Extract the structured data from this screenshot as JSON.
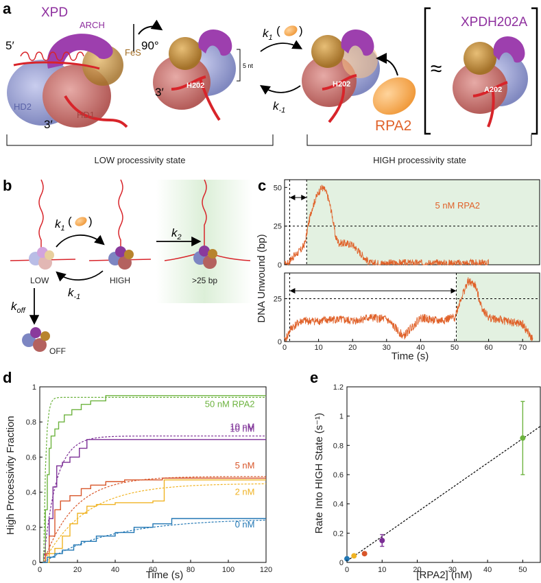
{
  "panel_a": {
    "letter": "a",
    "xpd_title": "XPD",
    "arch": "ARCH",
    "fes": "FeS",
    "hd2": "HD2",
    "hd1": "HD1",
    "five_prime": "5′",
    "three_prime": "3′",
    "three_prime_mid": "3′",
    "rotation": "90°",
    "h202_mid": "H202",
    "five_nt": "5 nt",
    "k1": "k",
    "k1_sub": "1",
    "km1": "k",
    "km1_sub": "-1",
    "h202_right": "H202",
    "rpa2": "RPA2",
    "mutant_title": "XPDH202A",
    "approx": "≈",
    "a202": "A202",
    "low_state": "LOW processivity state",
    "high_state": "HIGH processivity state"
  },
  "panel_b": {
    "letter": "b",
    "k1": "k",
    "k1_sub": "1",
    "k2": "k",
    "k2_sub": "2",
    "km1": "k",
    "km1_sub": "-1",
    "koff": "k",
    "koff_sub": "off",
    "low": "LOW",
    "high": "HIGH",
    "gt25": ">25 bp",
    "off": "OFF"
  },
  "panel_c": {
    "letter": "c",
    "ylabel": "DNA Unwound (bp)",
    "xlabel": "Time (s)",
    "trace_label": "5 nM RPA2",
    "top_yticks": [
      "0",
      "25",
      "50"
    ],
    "bottom_yticks": [
      "0",
      "25"
    ],
    "xticks": [
      "0",
      "10",
      "20",
      "30",
      "40",
      "50",
      "60",
      "70"
    ]
  },
  "panel_d": {
    "letter": "d",
    "ylabel": "High Processivity Fraction",
    "xlabel": "Time (s)",
    "xticks": [
      "0",
      "20",
      "40",
      "60",
      "80",
      "100",
      "120"
    ],
    "yticks": [
      "0",
      "0.2",
      "0.4",
      "0.6",
      "0.8",
      "1"
    ],
    "series_labels": [
      "50 nM RPA2",
      "10 nM",
      "5 nM",
      "2 nM",
      "0 nM"
    ]
  },
  "panel_e": {
    "letter": "e",
    "ylabel": "Rate Into HIGH State (s⁻¹)",
    "xlabel": "[RPA2] (nM)",
    "xticks": [
      "0",
      "10",
      "20",
      "30",
      "40",
      "50"
    ],
    "yticks": [
      "0",
      "0.2",
      "0.4",
      "0.6",
      "0.8",
      "1",
      "1.2"
    ]
  },
  "colors": {
    "red": "#d8242a",
    "orange": "#e0622a",
    "purple": "#8e2f9e",
    "blue_domain": "#8e97c9",
    "red_domain": "#c87a78",
    "gold": "#c6923c",
    "green_shade": "#e3f1e1",
    "c50": "#6db33f",
    "c10": "#7b2d95",
    "c5": "#d8562a",
    "c2": "#f0b323",
    "c0": "#2277b4"
  },
  "chart_data": [
    {
      "type": "line",
      "panel": "c-top",
      "title": "",
      "xlabel": "",
      "ylabel": "DNA Unwound (bp)",
      "xlim": [
        0,
        75
      ],
      "ylim": [
        0,
        55
      ],
      "legend": "5 nM RPA2",
      "series": [
        {
          "name": "5 nM RPA2",
          "x": [
            0,
            1,
            2,
            3,
            4,
            5,
            6,
            7,
            8,
            9,
            10,
            11,
            12,
            13,
            14,
            15,
            16,
            17,
            20,
            25,
            30,
            40,
            50,
            60
          ],
          "y": [
            0,
            1,
            4,
            6,
            8,
            10,
            14,
            26,
            36,
            42,
            47,
            50,
            48,
            42,
            32,
            18,
            14,
            14,
            13,
            1,
            1,
            1,
            1,
            1
          ]
        }
      ],
      "markers_x": [
        1.5,
        6.5
      ],
      "threshold_y": 25
    },
    {
      "type": "line",
      "panel": "c-bottom",
      "title": "",
      "xlabel": "Time (s)",
      "ylabel": "DNA Unwound (bp)",
      "xlim": [
        0,
        75
      ],
      "ylim": [
        0,
        40
      ],
      "series": [
        {
          "name": "",
          "x": [
            0,
            2,
            5,
            10,
            15,
            20,
            25,
            30,
            35,
            40,
            45,
            50,
            52,
            54,
            56,
            58,
            60,
            65,
            70,
            73
          ],
          "y": [
            0,
            8,
            12,
            12,
            13,
            12,
            14,
            13,
            3,
            14,
            12,
            14,
            26,
            35,
            33,
            20,
            14,
            12,
            10,
            1
          ]
        }
      ],
      "markers_x": [
        1.5,
        50.5
      ],
      "threshold_y": 25
    },
    {
      "type": "line",
      "panel": "d",
      "title": "",
      "xlabel": "Time (s)",
      "ylabel": "High Processivity Fraction",
      "xlim": [
        0,
        120
      ],
      "ylim": [
        0,
        1
      ],
      "series": [
        {
          "name": "50 nM RPA2",
          "x": [
            0,
            2,
            3,
            4,
            5,
            6,
            8,
            10,
            13,
            17,
            22,
            27,
            35,
            120
          ],
          "y": [
            0,
            0.05,
            0.3,
            0.5,
            0.65,
            0.72,
            0.76,
            0.8,
            0.84,
            0.87,
            0.9,
            0.92,
            0.95,
            0.95
          ],
          "fit_plateau": 0.94,
          "fit_rate": 0.85
        },
        {
          "name": "10 nM",
          "x": [
            0,
            3,
            5,
            7,
            9,
            12,
            16,
            21,
            25,
            120
          ],
          "y": [
            0,
            0.05,
            0.25,
            0.43,
            0.55,
            0.57,
            0.6,
            0.65,
            0.7,
            0.7
          ],
          "fit_plateau": 0.72,
          "fit_rate": 0.15
        },
        {
          "name": "5 nM",
          "x": [
            0,
            3,
            5,
            8,
            11,
            16,
            22,
            27,
            35,
            45,
            55,
            65,
            120
          ],
          "y": [
            0,
            0.05,
            0.15,
            0.3,
            0.35,
            0.38,
            0.42,
            0.44,
            0.46,
            0.47,
            0.47,
            0.48,
            0.48
          ],
          "fit_plateau": 0.49,
          "fit_rate": 0.062
        },
        {
          "name": "2 nM",
          "x": [
            0,
            5,
            8,
            12,
            16,
            20,
            25,
            30,
            40,
            50,
            60,
            66,
            120
          ],
          "y": [
            0,
            0.05,
            0.08,
            0.15,
            0.22,
            0.28,
            0.32,
            0.33,
            0.34,
            0.34,
            0.35,
            0.47,
            0.47
          ],
          "fit_plateau": 0.45,
          "fit_rate": 0.045
        },
        {
          "name": "0 nM",
          "x": [
            0,
            4,
            8,
            12,
            18,
            22,
            30,
            40,
            50,
            60,
            70,
            120
          ],
          "y": [
            0,
            0.03,
            0.05,
            0.07,
            0.1,
            0.12,
            0.15,
            0.17,
            0.2,
            0.22,
            0.25,
            0.25
          ],
          "fit_plateau": 0.25,
          "fit_rate": 0.028
        }
      ]
    },
    {
      "type": "scatter",
      "panel": "e",
      "title": "",
      "xlabel": "[RPA2] (nM)",
      "ylabel": "Rate Into HIGH State (s⁻¹)",
      "xlim": [
        0,
        55
      ],
      "ylim": [
        0,
        1.2
      ],
      "points": [
        {
          "x": 0,
          "y": 0.025,
          "err": 0.005,
          "color": "#2277b4"
        },
        {
          "x": 2,
          "y": 0.045,
          "err": 0.008,
          "color": "#f0b323"
        },
        {
          "x": 5,
          "y": 0.06,
          "err": 0.01,
          "color": "#d8562a"
        },
        {
          "x": 10,
          "y": 0.15,
          "err": 0.04,
          "color": "#7b2d95"
        },
        {
          "x": 50,
          "y": 0.85,
          "err": 0.25,
          "color": "#6db33f"
        }
      ],
      "fit": {
        "x": [
          0,
          55
        ],
        "y": [
          0.01,
          0.93
        ]
      }
    }
  ]
}
